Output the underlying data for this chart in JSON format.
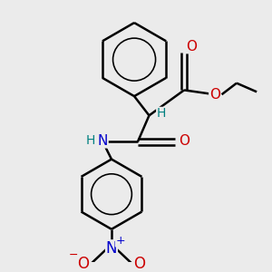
{
  "background_color": "#ebebeb",
  "line_color": "#000000",
  "bond_width": 1.8,
  "text_colors": {
    "O": "#cc0000",
    "N": "#0000cc",
    "H": "#008080",
    "C": "#000000"
  },
  "font_size": 10,
  "fig_w": 3.0,
  "fig_h": 3.0,
  "dpi": 100,
  "xlim": [
    0,
    300
  ],
  "ylim": [
    0,
    300
  ]
}
